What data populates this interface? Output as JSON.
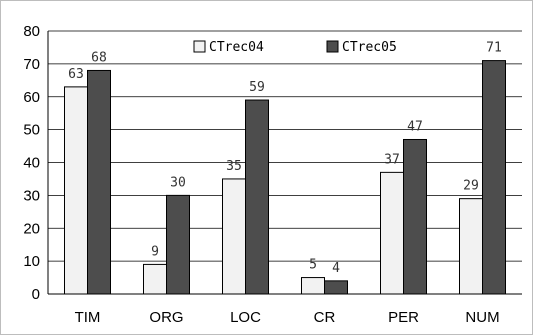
{
  "chart_data": {
    "type": "bar",
    "categories": [
      "TIM",
      "ORG",
      "LOC",
      "CR",
      "PER",
      "NUM"
    ],
    "series": [
      {
        "name": "CTrec04",
        "values": [
          63,
          9,
          35,
          5,
          37,
          29
        ],
        "color": "#f2f2f2"
      },
      {
        "name": "CTrec05",
        "values": [
          68,
          30,
          59,
          4,
          47,
          71
        ],
        "color": "#4d4d4d"
      }
    ],
    "yticks": [
      0,
      10,
      20,
      30,
      40,
      50,
      60,
      70,
      80
    ],
    "ylim": [
      0,
      80
    ],
    "grid": true,
    "legend": "top"
  }
}
